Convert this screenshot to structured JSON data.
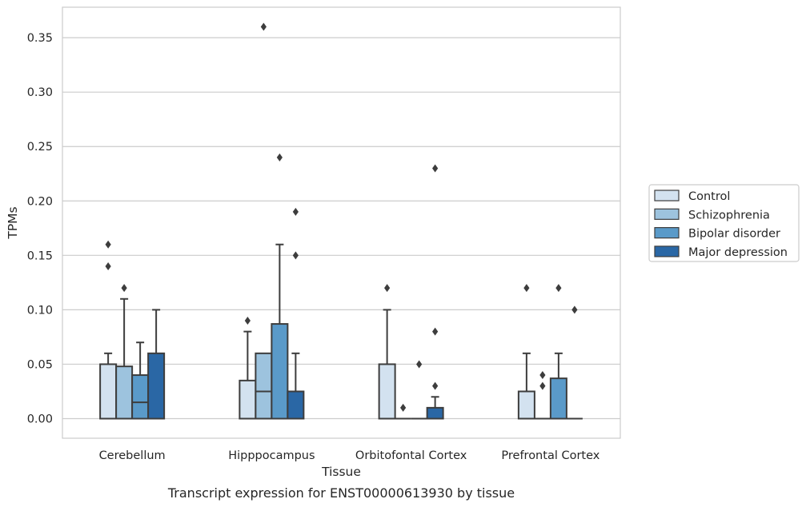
{
  "caption": "Transcript expression for ENST00000613930 by tissue",
  "chart_data": {
    "type": "boxplot",
    "xlabel": "Tissue",
    "ylabel": "TPMs",
    "ylim": [
      -0.018,
      0.378
    ],
    "yticks": [
      0.0,
      0.05,
      0.1,
      0.15,
      0.2,
      0.25,
      0.3,
      0.35
    ],
    "ytick_labels": [
      "0.00",
      "0.05",
      "0.10",
      "0.15",
      "0.20",
      "0.25",
      "0.30",
      "0.35"
    ],
    "grid": "horizontal",
    "legend_position": "right",
    "categories": [
      "Cerebellum",
      "Hipppocampus",
      "Orbitofontal Cortex",
      "Prefrontal Cortex"
    ],
    "series": [
      {
        "name": "Control",
        "color": "#d3e2f0",
        "boxes": [
          {
            "q1": 0.0,
            "median": 0.0,
            "q3": 0.05,
            "whisker_low": 0.0,
            "whisker_high": 0.06,
            "outliers": [
              0.14,
              0.16
            ]
          },
          {
            "q1": 0.0,
            "median": 0.0,
            "q3": 0.035,
            "whisker_low": 0.0,
            "whisker_high": 0.08,
            "outliers": [
              0.09
            ]
          },
          {
            "q1": 0.0,
            "median": 0.0,
            "q3": 0.05,
            "whisker_low": 0.0,
            "whisker_high": 0.1,
            "outliers": [
              0.12
            ]
          },
          {
            "q1": 0.0,
            "median": 0.0,
            "q3": 0.025,
            "whisker_low": 0.0,
            "whisker_high": 0.06,
            "outliers": [
              0.12
            ]
          }
        ]
      },
      {
        "name": "Schizophrenia",
        "color": "#9dc3de",
        "boxes": [
          {
            "q1": 0.0,
            "median": 0.0,
            "q3": 0.048,
            "whisker_low": 0.0,
            "whisker_high": 0.11,
            "outliers": [
              0.12
            ]
          },
          {
            "q1": 0.0,
            "median": 0.025,
            "q3": 0.06,
            "whisker_low": 0.0,
            "whisker_high": 0.06,
            "outliers": [
              0.36
            ]
          },
          {
            "q1": 0.0,
            "median": 0.0,
            "q3": 0.0,
            "whisker_low": 0.0,
            "whisker_high": 0.0,
            "outliers": [
              0.01
            ]
          },
          {
            "q1": 0.0,
            "median": 0.0,
            "q3": 0.0,
            "whisker_low": 0.0,
            "whisker_high": 0.0,
            "outliers": [
              0.03,
              0.04
            ]
          }
        ]
      },
      {
        "name": "Bipolar disorder",
        "color": "#5a9ac9",
        "boxes": [
          {
            "q1": 0.0,
            "median": 0.015,
            "q3": 0.04,
            "whisker_low": 0.0,
            "whisker_high": 0.07,
            "outliers": []
          },
          {
            "q1": 0.0,
            "median": 0.0,
            "q3": 0.087,
            "whisker_low": 0.0,
            "whisker_high": 0.16,
            "outliers": [
              0.24
            ]
          },
          {
            "q1": 0.0,
            "median": 0.0,
            "q3": 0.0,
            "whisker_low": 0.0,
            "whisker_high": 0.0,
            "outliers": [
              0.05
            ]
          },
          {
            "q1": 0.0,
            "median": 0.0,
            "q3": 0.037,
            "whisker_low": 0.0,
            "whisker_high": 0.06,
            "outliers": [
              0.12
            ]
          }
        ]
      },
      {
        "name": "Major depression",
        "color": "#2a67a5",
        "boxes": [
          {
            "q1": 0.0,
            "median": 0.0,
            "q3": 0.06,
            "whisker_low": 0.0,
            "whisker_high": 0.1,
            "outliers": []
          },
          {
            "q1": 0.0,
            "median": 0.0,
            "q3": 0.025,
            "whisker_low": 0.0,
            "whisker_high": 0.06,
            "outliers": [
              0.15,
              0.19
            ]
          },
          {
            "q1": 0.0,
            "median": 0.0,
            "q3": 0.01,
            "whisker_low": 0.0,
            "whisker_high": 0.02,
            "outliers": [
              0.03,
              0.08,
              0.23
            ]
          },
          {
            "q1": 0.0,
            "median": 0.0,
            "q3": 0.0,
            "whisker_low": 0.0,
            "whisker_high": 0.0,
            "outliers": [
              0.1
            ]
          }
        ]
      }
    ]
  }
}
